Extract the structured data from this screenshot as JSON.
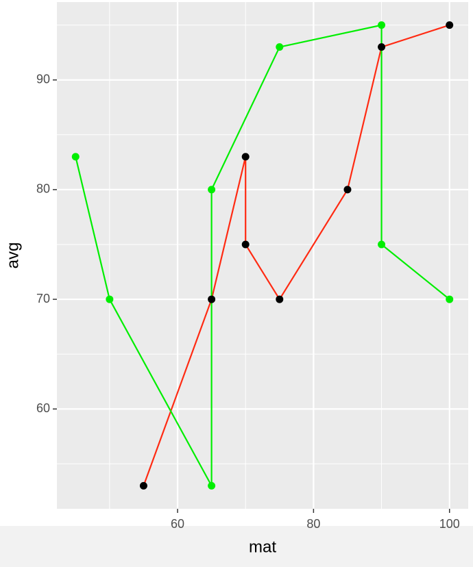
{
  "chart_data": {
    "type": "line",
    "x_label": "mat",
    "y_label": "avg",
    "series": [
      {
        "color": "#ff2a12",
        "point_color": "#000000",
        "x": [
          55,
          65,
          70,
          70,
          75,
          85,
          90,
          100
        ],
        "values": [
          53,
          70,
          83,
          75,
          70,
          80,
          93,
          95
        ]
      },
      {
        "color": "#00ee00",
        "point_color": "#00ee00",
        "x": [
          45,
          50,
          65,
          65,
          75,
          90,
          90,
          100
        ],
        "values": [
          83,
          70,
          53,
          80,
          93,
          95,
          75,
          70
        ]
      }
    ],
    "xlim": [
      42.25,
      102.75
    ],
    "ylim": [
      50.9,
      97.1
    ],
    "xticks": [
      60,
      80,
      100
    ],
    "yticks": [
      60,
      70,
      80,
      90
    ],
    "minor_xticks": [
      50,
      70,
      90
    ],
    "minor_yticks": [
      55,
      65,
      75,
      85,
      95
    ],
    "grid": true
  }
}
